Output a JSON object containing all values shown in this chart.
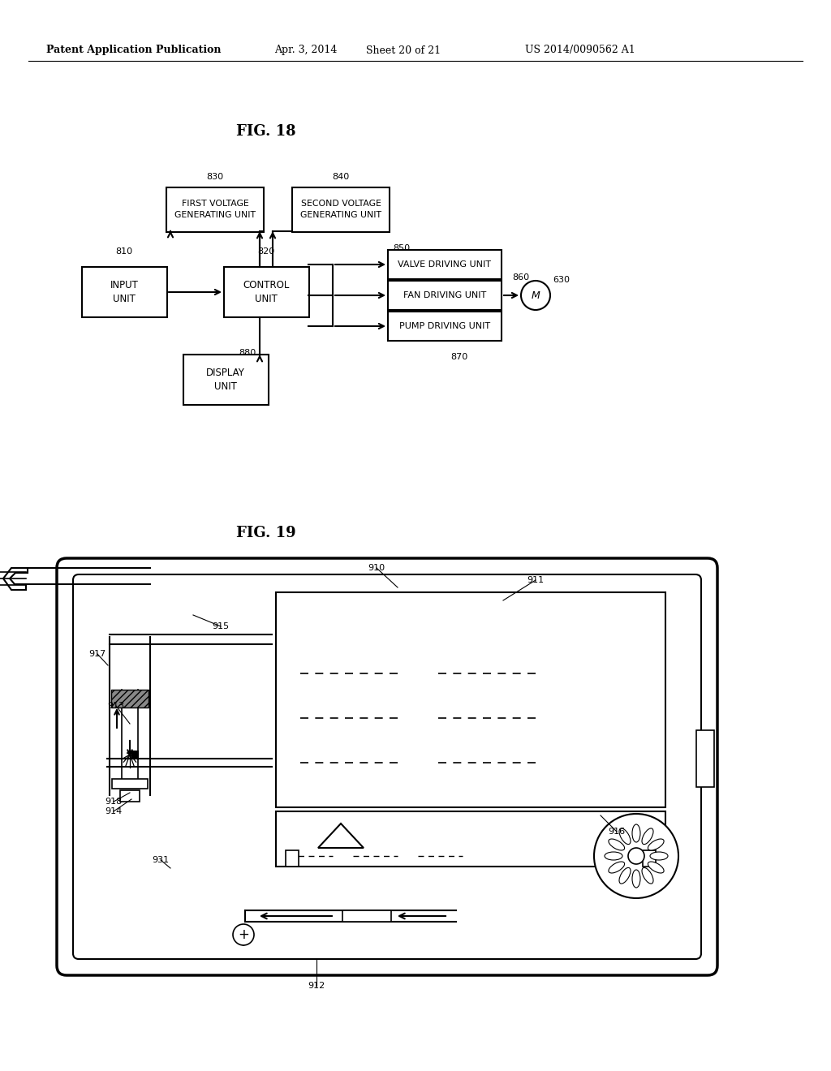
{
  "bg_color": "#ffffff",
  "header_left": "Patent Application Publication",
  "header_date": "Apr. 3, 2014",
  "header_sheet": "Sheet 20 of 21",
  "header_patent": "US 2014/0090562 A1",
  "fig18_title": "FIG. 18",
  "fig19_title": "FIG. 19"
}
